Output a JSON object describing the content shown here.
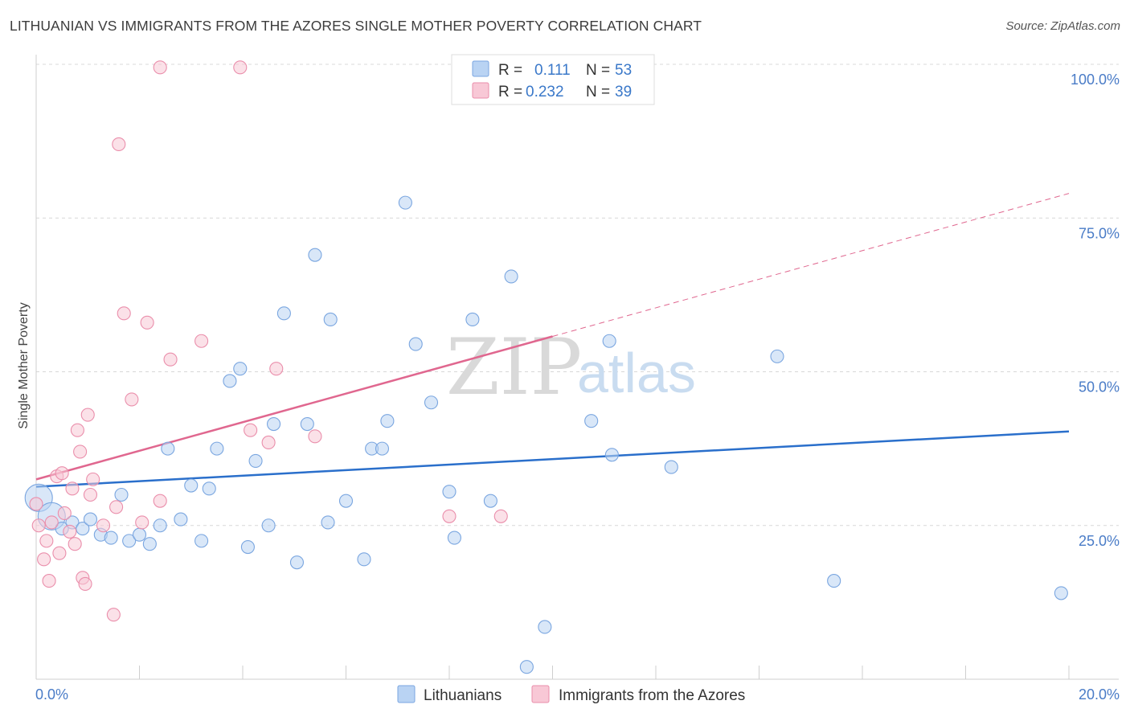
{
  "header": {
    "title": "LITHUANIAN VS IMMIGRANTS FROM THE AZORES SINGLE MOTHER POVERTY CORRELATION CHART",
    "source": "Source: ZipAtlas.com"
  },
  "watermark": {
    "zip": "ZIP",
    "atlas": "atlas"
  },
  "colors": {
    "blue_fill": "#b9d3f3",
    "blue_stroke": "#7aa6e0",
    "blue_line": "#2a6fcb",
    "pink_fill": "#f8c8d6",
    "pink_stroke": "#ea8eab",
    "pink_line": "#e0678f",
    "grid": "#d8d8d8",
    "axis_text": "#4a7cc7"
  },
  "legend": {
    "rows": [
      {
        "r_label": "R =",
        "r_value": "0.111",
        "n_label": "N =",
        "n_value": "53"
      },
      {
        "r_label": "R =",
        "r_value": "0.232",
        "n_label": "N =",
        "n_value": "39"
      }
    ]
  },
  "chart_data": {
    "type": "scatter",
    "title": "LITHUANIAN VS IMMIGRANTS FROM THE AZORES SINGLE MOTHER POVERTY CORRELATION CHART",
    "xlabel": "",
    "ylabel": "Single Mother Poverty",
    "xlim": [
      0,
      20
    ],
    "ylim": [
      0,
      100
    ],
    "x_tick_labels": {
      "min": "0.0%",
      "max": "20.0%"
    },
    "y_ticks": [
      25,
      50,
      75,
      100
    ],
    "y_tick_labels": [
      "25.0%",
      "50.0%",
      "75.0%",
      "100.0%"
    ],
    "grid": true,
    "series": [
      {
        "name": "Lithuanians",
        "color": "blue",
        "r": 0.111,
        "n": 53,
        "trend": {
          "x": [
            0,
            20
          ],
          "y": [
            31.3,
            40.3
          ],
          "solid_until": 20
        },
        "points": [
          {
            "x": 0.05,
            "y": 29.5,
            "big": true
          },
          {
            "x": 0.3,
            "y": 26.5,
            "big": true
          },
          {
            "x": 0.5,
            "y": 24.5
          },
          {
            "x": 0.7,
            "y": 25.5
          },
          {
            "x": 0.9,
            "y": 24.5
          },
          {
            "x": 1.05,
            "y": 26
          },
          {
            "x": 1.25,
            "y": 23.5
          },
          {
            "x": 1.45,
            "y": 23
          },
          {
            "x": 1.65,
            "y": 30
          },
          {
            "x": 1.8,
            "y": 22.5
          },
          {
            "x": 2.0,
            "y": 23.5
          },
          {
            "x": 2.2,
            "y": 22
          },
          {
            "x": 2.4,
            "y": 25
          },
          {
            "x": 2.55,
            "y": 37.5
          },
          {
            "x": 2.8,
            "y": 26
          },
          {
            "x": 3.0,
            "y": 31.5
          },
          {
            "x": 3.2,
            "y": 22.5
          },
          {
            "x": 3.35,
            "y": 31
          },
          {
            "x": 3.5,
            "y": 37.5
          },
          {
            "x": 3.75,
            "y": 48.5
          },
          {
            "x": 3.95,
            "y": 50.5
          },
          {
            "x": 4.1,
            "y": 21.5
          },
          {
            "x": 4.25,
            "y": 35.5
          },
          {
            "x": 4.5,
            "y": 25
          },
          {
            "x": 4.6,
            "y": 41.5
          },
          {
            "x": 4.8,
            "y": 59.5
          },
          {
            "x": 5.05,
            "y": 19
          },
          {
            "x": 5.25,
            "y": 41.5
          },
          {
            "x": 5.4,
            "y": 69
          },
          {
            "x": 5.65,
            "y": 25.5
          },
          {
            "x": 5.7,
            "y": 58.5
          },
          {
            "x": 6.0,
            "y": 29
          },
          {
            "x": 6.35,
            "y": 19.5
          },
          {
            "x": 6.5,
            "y": 37.5
          },
          {
            "x": 6.7,
            "y": 37.5
          },
          {
            "x": 6.8,
            "y": 42
          },
          {
            "x": 7.15,
            "y": 77.5
          },
          {
            "x": 7.35,
            "y": 54.5
          },
          {
            "x": 7.65,
            "y": 45
          },
          {
            "x": 8.0,
            "y": 30.5
          },
          {
            "x": 8.1,
            "y": 23
          },
          {
            "x": 8.45,
            "y": 58.5
          },
          {
            "x": 8.8,
            "y": 29
          },
          {
            "x": 9.2,
            "y": 65.5
          },
          {
            "x": 9.5,
            "y": 2
          },
          {
            "x": 9.85,
            "y": 8.5
          },
          {
            "x": 10.75,
            "y": 42
          },
          {
            "x": 11.1,
            "y": 55
          },
          {
            "x": 11.15,
            "y": 36.5
          },
          {
            "x": 12.3,
            "y": 34.5
          },
          {
            "x": 14.35,
            "y": 52.5
          },
          {
            "x": 15.45,
            "y": 16
          },
          {
            "x": 19.85,
            "y": 14
          }
        ]
      },
      {
        "name": "Immigrants from the Azores",
        "color": "pink",
        "r": 0.232,
        "n": 39,
        "trend": {
          "x": [
            0,
            20
          ],
          "y": [
            32.5,
            79
          ],
          "solid_until": 10
        },
        "points": [
          {
            "x": 0.0,
            "y": 28.5
          },
          {
            "x": 0.05,
            "y": 25
          },
          {
            "x": 0.15,
            "y": 19.5
          },
          {
            "x": 0.2,
            "y": 22.5
          },
          {
            "x": 0.25,
            "y": 16
          },
          {
            "x": 0.3,
            "y": 25.5
          },
          {
            "x": 0.4,
            "y": 33
          },
          {
            "x": 0.45,
            "y": 20.5
          },
          {
            "x": 0.5,
            "y": 33.5
          },
          {
            "x": 0.55,
            "y": 27
          },
          {
            "x": 0.65,
            "y": 24
          },
          {
            "x": 0.7,
            "y": 31
          },
          {
            "x": 0.75,
            "y": 22
          },
          {
            "x": 0.8,
            "y": 40.5
          },
          {
            "x": 0.85,
            "y": 37
          },
          {
            "x": 0.9,
            "y": 16.5
          },
          {
            "x": 0.95,
            "y": 15.5
          },
          {
            "x": 1.0,
            "y": 43
          },
          {
            "x": 1.05,
            "y": 30
          },
          {
            "x": 1.1,
            "y": 32.5
          },
          {
            "x": 1.3,
            "y": 25
          },
          {
            "x": 1.5,
            "y": 10.5
          },
          {
            "x": 1.55,
            "y": 28
          },
          {
            "x": 1.6,
            "y": 87
          },
          {
            "x": 1.7,
            "y": 59.5
          },
          {
            "x": 1.85,
            "y": 45.5
          },
          {
            "x": 2.05,
            "y": 25.5
          },
          {
            "x": 2.15,
            "y": 58
          },
          {
            "x": 2.4,
            "y": 99.5
          },
          {
            "x": 2.4,
            "y": 29
          },
          {
            "x": 2.6,
            "y": 52
          },
          {
            "x": 3.2,
            "y": 55
          },
          {
            "x": 3.95,
            "y": 99.5
          },
          {
            "x": 4.15,
            "y": 40.5
          },
          {
            "x": 4.5,
            "y": 38.5
          },
          {
            "x": 4.65,
            "y": 50.5
          },
          {
            "x": 5.4,
            "y": 39.5
          },
          {
            "x": 8.0,
            "y": 26.5
          },
          {
            "x": 9.0,
            "y": 26.5
          }
        ]
      }
    ]
  }
}
